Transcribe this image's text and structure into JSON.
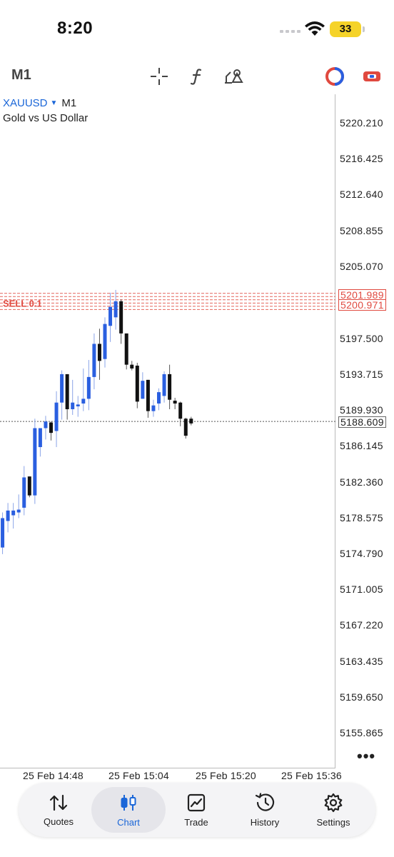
{
  "status_bar": {
    "time": "8:20",
    "battery": "33"
  },
  "toolbar": {
    "timeframe": "M1",
    "icons": [
      "crosshair-icon",
      "function-icon",
      "objects-icon",
      "color-scheme-icon",
      "account-icon"
    ]
  },
  "symbol": {
    "name": "XAUUSD",
    "timeframe": "M1",
    "description": "Gold vs US Dollar"
  },
  "price_scale": {
    "ticks": [
      "5220.210",
      "5216.425",
      "5212.640",
      "5208.855",
      "5205.070",
      "5197.500",
      "5193.715",
      "5189.930",
      "5186.145",
      "5182.360",
      "5178.575",
      "5174.790",
      "5171.005",
      "5167.220",
      "5163.435",
      "5159.650",
      "5155.865"
    ],
    "order_badge_1": "5201.989",
    "order_badge_2": "5200.971",
    "current_price": "5188.609"
  },
  "order_label": "SELL 0.1",
  "time_axis": [
    "25 Feb 14:48",
    "25 Feb 15:04",
    "25 Feb 15:20",
    "25 Feb 15:36"
  ],
  "chart_data": {
    "type": "candlestick",
    "ylim": [
      5154.0,
      5222.0
    ],
    "bull_color": "#2a5fe0",
    "bear_color": "#111111",
    "order_line_color": "#e0493f",
    "candles": [
      {
        "o": 5175.0,
        "h": 5177.6,
        "l": 5172.4,
        "c": 5177.0
      },
      {
        "o": 5175.3,
        "h": 5179.0,
        "l": 5174.6,
        "c": 5178.4
      },
      {
        "o": 5178.1,
        "h": 5180.0,
        "l": 5176.9,
        "c": 5179.2
      },
      {
        "o": 5178.7,
        "h": 5180.0,
        "l": 5177.3,
        "c": 5179.2
      },
      {
        "o": 5179.0,
        "h": 5180.9,
        "l": 5178.4,
        "c": 5179.3
      },
      {
        "o": 5179.5,
        "h": 5183.9,
        "l": 5178.7,
        "c": 5182.7
      },
      {
        "o": 5182.8,
        "h": 5182.8,
        "l": 5180.6,
        "c": 5180.8
      },
      {
        "o": 5180.8,
        "h": 5188.9,
        "l": 5179.9,
        "c": 5187.9
      },
      {
        "o": 5185.9,
        "h": 5187.9,
        "l": 5184.9,
        "c": 5187.9
      },
      {
        "o": 5187.9,
        "h": 5189.2,
        "l": 5186.7,
        "c": 5188.6
      },
      {
        "o": 5188.5,
        "h": 5188.6,
        "l": 5186.6,
        "c": 5187.4
      },
      {
        "o": 5187.6,
        "h": 5191.8,
        "l": 5185.9,
        "c": 5190.6
      },
      {
        "o": 5190.6,
        "h": 5194.0,
        "l": 5188.8,
        "c": 5193.6
      },
      {
        "o": 5193.6,
        "h": 5193.6,
        "l": 5188.8,
        "c": 5189.9
      },
      {
        "o": 5189.9,
        "h": 5193.0,
        "l": 5189.3,
        "c": 5190.6
      },
      {
        "o": 5190.2,
        "h": 5191.3,
        "l": 5189.1,
        "c": 5190.4
      },
      {
        "o": 5190.5,
        "h": 5194.2,
        "l": 5189.7,
        "c": 5191.0
      },
      {
        "o": 5191.0,
        "h": 5195.1,
        "l": 5189.8,
        "c": 5193.3
      },
      {
        "o": 5193.3,
        "h": 5197.9,
        "l": 5192.0,
        "c": 5196.8
      },
      {
        "o": 5196.8,
        "h": 5198.4,
        "l": 5193.0,
        "c": 5195.0
      },
      {
        "o": 5195.2,
        "h": 5199.6,
        "l": 5194.3,
        "c": 5198.9
      },
      {
        "o": 5198.7,
        "h": 5202.2,
        "l": 5197.0,
        "c": 5200.7
      },
      {
        "o": 5199.6,
        "h": 5202.5,
        "l": 5198.3,
        "c": 5201.3
      },
      {
        "o": 5201.3,
        "h": 5201.5,
        "l": 5196.8,
        "c": 5197.9
      },
      {
        "o": 5197.9,
        "h": 5197.9,
        "l": 5194.1,
        "c": 5194.6
      },
      {
        "o": 5194.6,
        "h": 5195.0,
        "l": 5194.0,
        "c": 5194.2
      },
      {
        "o": 5194.5,
        "h": 5194.8,
        "l": 5190.0,
        "c": 5190.7
      },
      {
        "o": 5191.0,
        "h": 5193.8,
        "l": 5191.0,
        "c": 5192.9
      },
      {
        "o": 5193.0,
        "h": 5193.0,
        "l": 5189.0,
        "c": 5189.7
      },
      {
        "o": 5189.7,
        "h": 5190.9,
        "l": 5189.1,
        "c": 5190.3
      },
      {
        "o": 5190.5,
        "h": 5192.1,
        "l": 5189.8,
        "c": 5191.7
      },
      {
        "o": 5191.3,
        "h": 5193.9,
        "l": 5190.6,
        "c": 5193.6
      },
      {
        "o": 5193.6,
        "h": 5194.6,
        "l": 5189.9,
        "c": 5190.9
      },
      {
        "o": 5190.8,
        "h": 5191.1,
        "l": 5189.9,
        "c": 5190.5
      },
      {
        "o": 5190.6,
        "h": 5190.7,
        "l": 5188.1,
        "c": 5188.9
      },
      {
        "o": 5188.9,
        "h": 5189.0,
        "l": 5186.8,
        "c": 5187.1
      },
      {
        "o": 5188.9,
        "h": 5189.1,
        "l": 5188.2,
        "c": 5188.4
      }
    ],
    "order_levels": [
      5202.13,
      5201.79,
      5201.45,
      5201.11,
      5200.77,
      5200.43
    ],
    "current_price_value": 5188.609
  },
  "tabs": [
    {
      "label": "Quotes"
    },
    {
      "label": "Chart"
    },
    {
      "label": "Trade"
    },
    {
      "label": "History"
    },
    {
      "label": "Settings"
    }
  ]
}
